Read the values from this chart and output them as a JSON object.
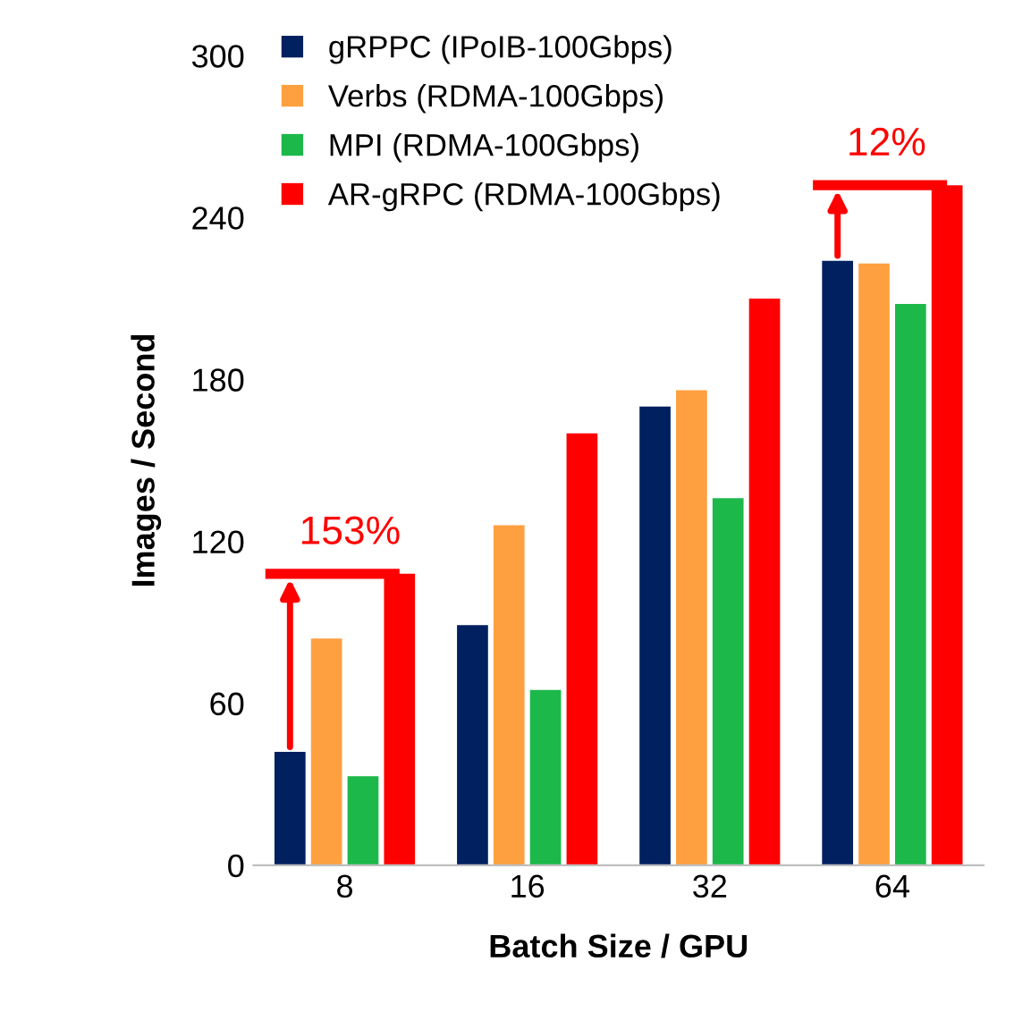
{
  "chart_data": {
    "type": "bar",
    "xlabel": "Batch Size / GPU",
    "ylabel": "Images / Second",
    "categories": [
      "8",
      "16",
      "32",
      "64"
    ],
    "series": [
      {
        "name": "gRPPC (IPoIB-100Gbps)",
        "color": "#002060",
        "values": [
          42,
          89,
          170,
          224
        ]
      },
      {
        "name": "Verbs (RDMA-100Gbps)",
        "color": "#ffa040",
        "values": [
          84,
          126,
          176,
          223
        ]
      },
      {
        "name": "MPI (RDMA-100Gbps)",
        "color": "#1cb84a",
        "values": [
          33,
          65,
          136,
          208
        ]
      },
      {
        "name": "AR-gRPC (RDMA-100Gbps)",
        "color": "#ff0000",
        "values": [
          108,
          160,
          210,
          252
        ]
      }
    ],
    "annotations": [
      "153%",
      "12%"
    ],
    "ylim": [
      0,
      300
    ],
    "yticks": [
      0,
      60,
      120,
      180,
      240,
      300
    ],
    "grid": false,
    "legend": "top left"
  }
}
